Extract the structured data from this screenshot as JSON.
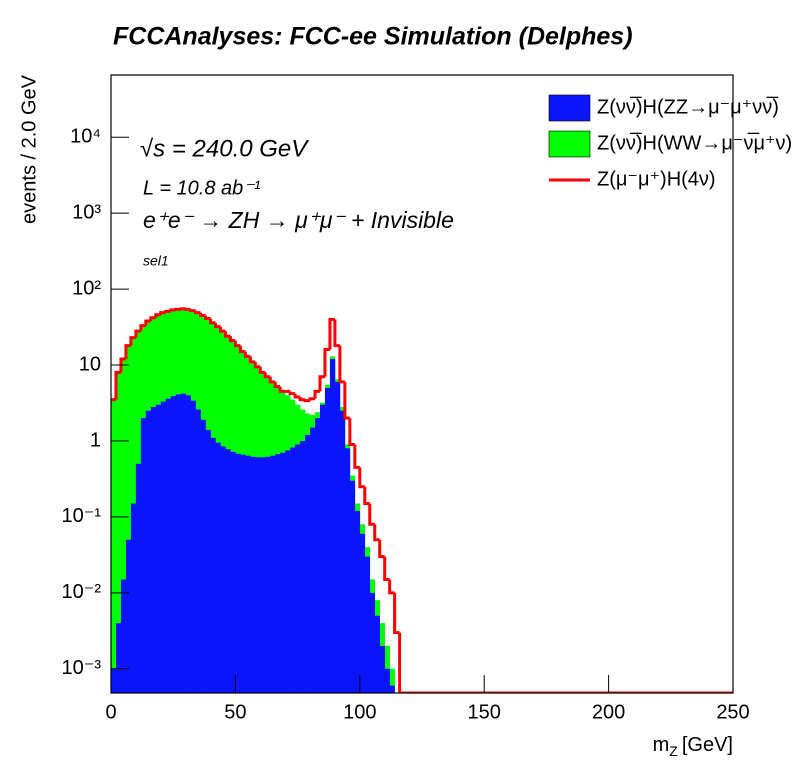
{
  "chart_data": {
    "type": "histogram",
    "title": "FCCAnalyses: FCC-ee Simulation (Delphes)",
    "annotations": [
      "√s = 240.0 GeV",
      "L = 10.8 ab⁻¹",
      "e⁺e⁻ → ZH → μ⁺μ⁻ + Invisible",
      "sel1"
    ],
    "x_label": {
      "symbol": "m",
      "subscript": "Z",
      "unit": "[GeV]"
    },
    "y_label": "events / 2.0 GeV",
    "bins": [
      0,
      2,
      4,
      6,
      8,
      10,
      12,
      14,
      16,
      18,
      20,
      22,
      24,
      26,
      28,
      30,
      32,
      34,
      36,
      38,
      40,
      42,
      44,
      46,
      48,
      50,
      52,
      54,
      56,
      58,
      60,
      62,
      64,
      66,
      68,
      70,
      72,
      74,
      76,
      78,
      80,
      82,
      84,
      86,
      88,
      90,
      92,
      94,
      96,
      98,
      100,
      102,
      104,
      106,
      108,
      110,
      112,
      114,
      116,
      118,
      120,
      250
    ],
    "series": [
      {
        "name": "Z(νν̅)H(ZZ→μ⁻μ⁺νν̅)",
        "color": "#0a14ff",
        "style": "fill",
        "values": [
          0.001,
          0.004,
          0.015,
          0.05,
          0.15,
          0.5,
          2.0,
          2.5,
          2.8,
          3.0,
          3.3,
          3.6,
          3.9,
          4.1,
          4.2,
          4.0,
          3.4,
          2.6,
          1.9,
          1.4,
          1.1,
          0.95,
          0.85,
          0.78,
          0.72,
          0.68,
          0.66,
          0.64,
          0.62,
          0.61,
          0.61,
          0.62,
          0.64,
          0.67,
          0.7,
          0.75,
          0.82,
          0.9,
          1.0,
          1.2,
          1.5,
          2.0,
          3.0,
          5.0,
          12,
          6,
          2.5,
          0.8,
          0.3,
          0.12,
          0.06,
          0.03,
          0.01,
          0.005,
          0.002,
          0.001,
          0.0006,
          0,
          0,
          0,
          0
        ]
      },
      {
        "name": "Z(νν̅)H(WW→μ⁻ν̅μ⁺ν)",
        "color": "#00ff00",
        "style": "fill",
        "values": [
          3.5,
          8,
          12,
          18,
          23,
          28,
          33,
          38,
          42,
          46,
          49,
          51,
          53,
          54,
          55,
          54,
          52,
          49,
          45,
          41,
          36,
          32,
          28,
          24,
          21,
          18,
          15,
          13,
          11,
          9.5,
          8,
          7,
          6,
          5.2,
          4.5,
          4,
          3.5,
          3,
          2.6,
          2.3,
          2.2,
          2.4,
          3.2,
          5.5,
          13,
          6.5,
          2.8,
          0.9,
          0.35,
          0.15,
          0.08,
          0.04,
          0.015,
          0.008,
          0.004,
          0.002,
          0.001,
          0,
          0,
          0,
          0
        ]
      },
      {
        "name": "Z(μ⁻μ⁺)H(4ν)",
        "color": "#ff0000",
        "style": "line",
        "values": [
          3.5,
          8,
          12,
          18,
          23,
          28,
          33,
          38,
          42,
          46,
          49,
          51,
          53,
          54,
          55,
          54,
          52,
          49,
          45,
          41,
          36,
          32,
          28,
          24,
          21,
          18,
          15,
          13,
          11,
          9.5,
          8,
          7,
          6,
          5.2,
          4.5,
          4.5,
          4.2,
          3.8,
          3.5,
          3.4,
          3.6,
          4.5,
          7,
          16,
          40,
          18,
          6,
          2,
          0.9,
          0.45,
          0.25,
          0.15,
          0.08,
          0.05,
          0.03,
          0.015,
          0.01,
          0.003,
          0,
          0,
          0
        ]
      }
    ],
    "xlim": [
      0,
      250
    ],
    "xticks": [
      0,
      50,
      100,
      150,
      200,
      250
    ],
    "ylim": [
      0.00048,
      66000
    ],
    "yticks": [
      {
        "value": 0.001,
        "label": "10⁻³"
      },
      {
        "value": 0.01,
        "label": "10⁻²"
      },
      {
        "value": 0.1,
        "label": "10⁻¹"
      },
      1,
      10,
      {
        "value": 100,
        "label": "10²"
      },
      {
        "value": 1000,
        "label": "10³"
      },
      {
        "value": 10000,
        "label": "10⁴"
      }
    ],
    "log_y": true,
    "legend": "top-right"
  }
}
